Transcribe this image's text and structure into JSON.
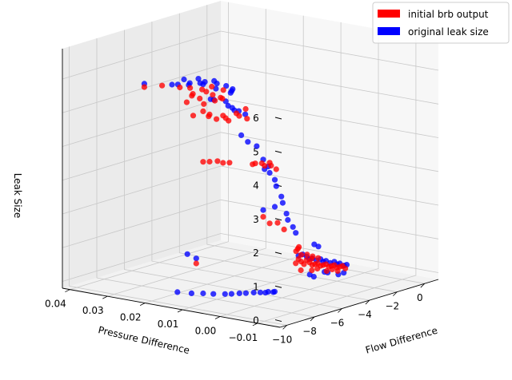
{
  "chart_data": {
    "type": "scatter",
    "projection": "3d",
    "title": "",
    "xlabel": "Flow Difference",
    "ylabel": "Pressure Difference",
    "zlabel": "Leak Size",
    "xlim": [
      -10.5,
      1.0
    ],
    "ylim": [
      -0.016,
      0.042
    ],
    "zlim": [
      -0.2,
      6.9
    ],
    "x_ticks": [
      {
        "v": -10,
        "label": "−10"
      },
      {
        "v": -8,
        "label": "−8"
      },
      {
        "v": -6,
        "label": "−6"
      },
      {
        "v": -4,
        "label": "−4"
      },
      {
        "v": -2,
        "label": "−2"
      },
      {
        "v": 0,
        "label": "0"
      }
    ],
    "y_ticks": [
      {
        "v": 0.04,
        "label": "0.04"
      },
      {
        "v": 0.03,
        "label": "0.03"
      },
      {
        "v": 0.02,
        "label": "0.02"
      },
      {
        "v": 0.01,
        "label": "0.01"
      },
      {
        "v": 0.0,
        "label": "0.00"
      },
      {
        "v": -0.01,
        "label": "−0.01"
      }
    ],
    "z_ticks": [
      {
        "v": 0,
        "label": "0"
      },
      {
        "v": 1,
        "label": "1"
      },
      {
        "v": 2,
        "label": "2"
      },
      {
        "v": 3,
        "label": "3"
      },
      {
        "v": 4,
        "label": "4"
      },
      {
        "v": 5,
        "label": "5"
      },
      {
        "v": 6,
        "label": "6"
      }
    ],
    "grid": true,
    "legend_position": "top-right",
    "series": [
      {
        "name": "original leak size",
        "color": "#0000ff",
        "points": [
          [
            -9.5,
            0.015,
            0.1
          ],
          [
            -9.3,
            0.012,
            0.1
          ],
          [
            -9.0,
            0.01,
            0.1
          ],
          [
            -8.8,
            0.008,
            0.1
          ],
          [
            -8.5,
            0.006,
            0.1
          ],
          [
            -8.3,
            0.005,
            0.1
          ],
          [
            -8.0,
            0.004,
            0.1
          ],
          [
            -7.8,
            0.003,
            0.1
          ],
          [
            -7.5,
            0.002,
            0.1
          ],
          [
            -7.3,
            0.001,
            0.1
          ],
          [
            -7.2,
            0.0,
            0.1
          ],
          [
            -7.0,
            0.0,
            0.1
          ],
          [
            -6.9,
            -0.001,
            0.1
          ],
          [
            -6.8,
            -0.001,
            0.1
          ],
          [
            -9.5,
            0.01,
            1.2
          ],
          [
            -9.6,
            0.012,
            1.3
          ],
          [
            -10.0,
            0.022,
            6.2
          ],
          [
            -9.9,
            0.015,
            6.3
          ],
          [
            -9.7,
            0.011,
            6.4
          ],
          [
            -9.5,
            0.012,
            6.3
          ],
          [
            -9.3,
            0.014,
            6.4
          ],
          [
            -9.2,
            0.016,
            6.2
          ],
          [
            -9.0,
            0.01,
            6.3
          ],
          [
            -8.8,
            0.012,
            6.4
          ],
          [
            -8.6,
            0.011,
            6.3
          ],
          [
            -8.4,
            0.013,
            6.2
          ],
          [
            -8.2,
            0.01,
            6.3
          ],
          [
            -8.0,
            0.01,
            6.2
          ],
          [
            -7.8,
            0.011,
            6.0
          ],
          [
            -7.6,
            0.009,
            6.1
          ],
          [
            -7.4,
            0.008,
            6.0
          ],
          [
            -7.2,
            0.009,
            5.9
          ],
          [
            -9.0,
            0.008,
            5.9
          ],
          [
            -8.5,
            0.009,
            5.8
          ],
          [
            -8.0,
            0.007,
            5.6
          ],
          [
            -7.9,
            0.008,
            5.7
          ],
          [
            -7.7,
            0.007,
            5.5
          ],
          [
            -7.5,
            0.006,
            5.4
          ],
          [
            -7.3,
            0.005,
            5.3
          ],
          [
            -7.0,
            0.01,
            5.8
          ],
          [
            -7.0,
            0.009,
            5.3
          ],
          [
            -6.5,
            0.009,
            4.5
          ],
          [
            -6.3,
            0.008,
            4.3
          ],
          [
            -6.2,
            0.006,
            4.2
          ],
          [
            -6.0,
            0.005,
            3.8
          ],
          [
            -5.9,
            0.004,
            3.6
          ],
          [
            -5.8,
            0.004,
            3.4
          ],
          [
            -5.9,
            0.005,
            3.5
          ],
          [
            -5.7,
            0.003,
            3.2
          ],
          [
            -5.6,
            0.003,
            3.0
          ],
          [
            -5.5,
            0.002,
            2.7
          ],
          [
            -5.4,
            0.002,
            2.5
          ],
          [
            -5.4,
            0.001,
            2.2
          ],
          [
            -5.3,
            0.001,
            2.0
          ],
          [
            -5.2,
            0.0,
            1.8
          ],
          [
            -5.7,
            0.003,
            2.4
          ],
          [
            -6.0,
            0.005,
            2.3
          ],
          [
            -5.0,
            0.0,
            1.6
          ],
          [
            -4.8,
            0.0,
            0.9
          ],
          [
            -4.5,
            0.0,
            0.9
          ],
          [
            -4.2,
            0.0,
            0.8
          ],
          [
            -4.0,
            0.0,
            0.7
          ],
          [
            -3.8,
            0.0,
            0.7
          ],
          [
            -3.5,
            0.0,
            0.6
          ],
          [
            -3.2,
            0.0,
            0.6
          ],
          [
            -3.0,
            0.0,
            0.5
          ],
          [
            -2.8,
            0.0,
            0.5
          ],
          [
            -2.5,
            0.0,
            0.4
          ],
          [
            -2.2,
            0.0,
            0.4
          ],
          [
            -2.0,
            0.0,
            0.3
          ],
          [
            -1.8,
            0.0,
            0.3
          ],
          [
            -1.5,
            0.0,
            0.2
          ],
          [
            -1.3,
            0.0,
            0.2
          ],
          [
            -4.8,
            -0.003,
            0.4
          ],
          [
            -4.5,
            -0.003,
            0.3
          ],
          [
            -4.0,
            -0.004,
            0.4
          ],
          [
            -3.5,
            -0.003,
            0.3
          ],
          [
            -3.0,
            -0.004,
            0.2
          ],
          [
            -2.6,
            -0.004,
            0.2
          ],
          [
            -4.2,
            -0.002,
            1.2
          ],
          [
            -3.9,
            -0.002,
            1.1
          ]
        ]
      },
      {
        "name": "initial brb output",
        "color": "#ff0000",
        "points": [
          [
            -9.5,
            0.01,
            1.05
          ],
          [
            -10.0,
            0.022,
            6.1
          ],
          [
            -9.8,
            0.018,
            6.2
          ],
          [
            -9.6,
            0.014,
            6.2
          ],
          [
            -9.4,
            0.012,
            6.2
          ],
          [
            -9.2,
            0.012,
            6.0
          ],
          [
            -9.0,
            0.013,
            5.9
          ],
          [
            -8.8,
            0.011,
            6.1
          ],
          [
            -8.7,
            0.012,
            5.8
          ],
          [
            -8.5,
            0.011,
            6.0
          ],
          [
            -8.3,
            0.01,
            5.9
          ],
          [
            -8.1,
            0.011,
            6.1
          ],
          [
            -8.0,
            0.009,
            5.8
          ],
          [
            -7.8,
            0.009,
            6.0
          ],
          [
            -7.6,
            0.01,
            5.7
          ],
          [
            -9.0,
            0.01,
            5.5
          ],
          [
            -8.8,
            0.009,
            5.4
          ],
          [
            -8.6,
            0.01,
            5.3
          ],
          [
            -8.3,
            0.009,
            5.2
          ],
          [
            -8.1,
            0.008,
            5.3
          ],
          [
            -7.9,
            0.008,
            5.2
          ],
          [
            -7.7,
            0.008,
            5.1
          ],
          [
            -7.4,
            0.007,
            5.3
          ],
          [
            -7.2,
            0.007,
            5.2
          ],
          [
            -7.0,
            0.006,
            5.4
          ],
          [
            -6.9,
            0.006,
            5.1
          ],
          [
            -7.6,
            0.012,
            5.6
          ],
          [
            -8.4,
            0.012,
            5.6
          ],
          [
            -9.1,
            0.014,
            5.7
          ],
          [
            -8.9,
            0.013,
            5.3
          ],
          [
            -9.0,
            0.01,
            4.0
          ],
          [
            -8.8,
            0.009,
            4.0
          ],
          [
            -8.5,
            0.008,
            4.0
          ],
          [
            -8.1,
            0.008,
            3.9
          ],
          [
            -7.9,
            0.007,
            3.9
          ],
          [
            -6.5,
            0.006,
            3.7
          ],
          [
            -6.3,
            0.006,
            3.7
          ],
          [
            -6.1,
            0.005,
            3.7
          ],
          [
            -5.9,
            0.005,
            3.6
          ],
          [
            -5.8,
            0.004,
            3.7
          ],
          [
            -5.7,
            0.004,
            3.6
          ],
          [
            -5.6,
            0.003,
            3.5
          ],
          [
            -6.0,
            0.005,
            2.1
          ],
          [
            -5.8,
            0.004,
            1.9
          ],
          [
            -5.5,
            0.003,
            1.9
          ],
          [
            -5.3,
            0.002,
            1.7
          ],
          [
            -5.0,
            0.0,
            0.7
          ],
          [
            -4.8,
            0.0,
            0.8
          ],
          [
            -4.6,
            0.0,
            0.7
          ],
          [
            -4.4,
            0.0,
            0.6
          ],
          [
            -4.2,
            0.0,
            0.7
          ],
          [
            -4.0,
            0.0,
            0.6
          ],
          [
            -3.8,
            0.0,
            0.5
          ],
          [
            -3.6,
            0.0,
            0.5
          ],
          [
            -3.4,
            0.0,
            0.5
          ],
          [
            -3.2,
            0.0,
            0.4
          ],
          [
            -3.0,
            0.0,
            0.4
          ],
          [
            -2.8,
            0.0,
            0.4
          ],
          [
            -2.6,
            0.0,
            0.3
          ],
          [
            -2.4,
            0.0,
            0.3
          ],
          [
            -2.2,
            0.0,
            0.3
          ],
          [
            -2.0,
            0.0,
            0.2
          ],
          [
            -1.8,
            0.0,
            0.2
          ],
          [
            -1.6,
            0.0,
            0.2
          ],
          [
            -1.4,
            0.0,
            0.1
          ],
          [
            -4.7,
            0.001,
            1.0
          ],
          [
            -4.5,
            0.001,
            1.1
          ],
          [
            -4.3,
            0.002,
            1.0
          ],
          [
            -4.9,
            -0.001,
            0.5
          ],
          [
            -4.1,
            -0.001,
            0.4
          ],
          [
            -3.7,
            -0.001,
            0.4
          ],
          [
            -3.3,
            -0.002,
            0.3
          ],
          [
            -2.9,
            -0.002,
            0.3
          ],
          [
            -2.5,
            -0.002,
            0.2
          ],
          [
            -4.6,
            0.0,
            0.9
          ],
          [
            -4.4,
            -0.002,
            0.8
          ],
          [
            -3.9,
            0.001,
            0.8
          ],
          [
            -3.5,
            0.001,
            0.7
          ],
          [
            -3.1,
            0.001,
            0.6
          ]
        ]
      }
    ]
  }
}
